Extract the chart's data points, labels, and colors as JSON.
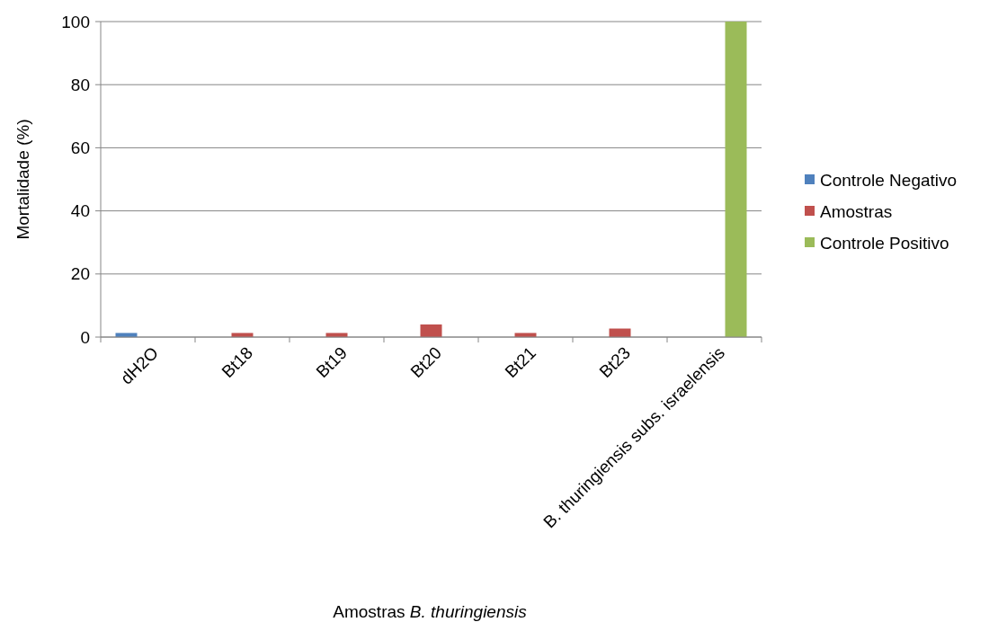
{
  "chart_data": {
    "type": "bar",
    "xlabel": "Amostras B. thuringiensis",
    "ylabel": "Mortalidade (%)",
    "categories": [
      "dH2O",
      "Bt18",
      "Bt19",
      "Bt20",
      "Bt21",
      "Bt23",
      "B. thuringiensis subs. israelensis"
    ],
    "series": [
      {
        "name": "Controle Negativo",
        "color": "#4f81bd",
        "values": [
          1.3,
          null,
          null,
          null,
          null,
          null,
          null
        ]
      },
      {
        "name": "Amostras",
        "color": "#c0504d",
        "values": [
          null,
          1.3,
          1.3,
          4,
          1.3,
          2.7,
          null
        ]
      },
      {
        "name": "Controle Positivo",
        "color": "#9bbb59",
        "values": [
          null,
          null,
          null,
          null,
          null,
          null,
          100
        ]
      }
    ],
    "ylim": [
      0,
      100
    ],
    "yticks": [
      0,
      20,
      40,
      60,
      80,
      100
    ],
    "grid": "y",
    "legend": "right"
  }
}
